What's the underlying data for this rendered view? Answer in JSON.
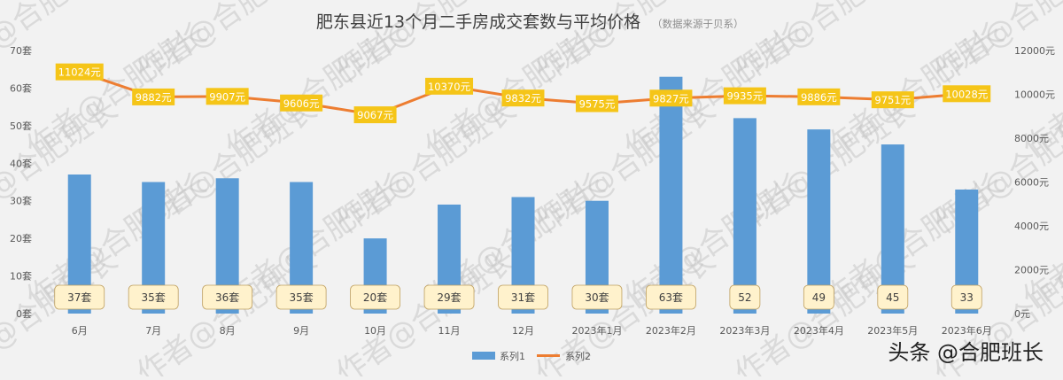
{
  "chart_data": {
    "type": "bar",
    "title": "肥东县近13个月二手房成交套数与平均价格",
    "subtitle": "（数据来源于贝系）",
    "categories": [
      "6月",
      "7月",
      "8月",
      "9月",
      "10月",
      "11月",
      "12月",
      "2023年1月",
      "2023年2月",
      "2023年3月",
      "2023年4月",
      "2023年5月",
      "2023年6月"
    ],
    "series": [
      {
        "name": "系列1",
        "type": "bar",
        "axis": "left",
        "color": "#5b9bd5",
        "values": [
          37,
          35,
          36,
          35,
          20,
          29,
          31,
          30,
          63,
          52,
          49,
          45,
          33
        ],
        "labels": [
          "37套",
          "35套",
          "36套",
          "35套",
          "20套",
          "29套",
          "31套",
          "30套",
          "63套",
          "52",
          "49",
          "45",
          "33"
        ]
      },
      {
        "name": "系列2",
        "type": "line",
        "axis": "right",
        "color": "#ed7d31",
        "values": [
          11024,
          9882,
          9907,
          9606,
          9067,
          10370,
          9832,
          9575,
          9827,
          9935,
          9886,
          9751,
          10028
        ],
        "labels": [
          "11024元",
          "9882元",
          "9907元",
          "9606元",
          "9067元",
          "10370元",
          "9832元",
          "9575元",
          "9827元",
          "9935元",
          "9886元",
          "9751元",
          "10028元"
        ]
      }
    ],
    "y_left": {
      "ylim": [
        0,
        70
      ],
      "ticks": [
        "0套",
        "10套",
        "20套",
        "30套",
        "40套",
        "50套",
        "60套",
        "70套"
      ]
    },
    "y_right": {
      "ylim": [
        0,
        12000
      ],
      "ticks": [
        "0元",
        "2000元",
        "4000元",
        "6000元",
        "8000元",
        "10000元",
        "12000元"
      ]
    },
    "grid": false,
    "legend_position": "bottom"
  },
  "watermark": "作者@合肥班长",
  "credit": "头条 @合肥班长",
  "colors": {
    "background": "#f2f2f2",
    "bar": "#5b9bd5",
    "line": "#ed7d31",
    "line_label_bg": "#f5c518",
    "bar_label_bg": "#fff2cc",
    "bar_label_border": "#bfa060"
  }
}
